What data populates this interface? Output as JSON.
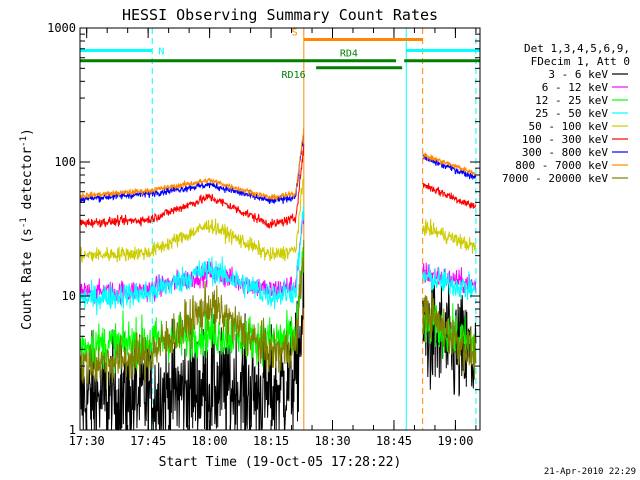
{
  "chart_data": {
    "type": "line",
    "title": "HESSI Observing Summary Count Rates",
    "xlabel": "Start Time (19-Oct-05 17:28:22)",
    "ylabel": "Count Rate (s",
    "ylabel_sup1": "-1",
    "ylabel_mid": " detector",
    "ylabel_sup2": "-1",
    "ylabel_end": ")",
    "y_scale": "log",
    "ylim": [
      1,
      1000
    ],
    "xlim": [
      "17:28:22",
      "19:06:00"
    ],
    "x_ticks": [
      "17:30",
      "17:45",
      "18:00",
      "18:15",
      "18:30",
      "18:45",
      "19:00"
    ],
    "y_ticks": [
      "1",
      "10",
      "100",
      "1000"
    ],
    "grid": false,
    "timestamp": "21-Apr-2010 22:29",
    "legend": {
      "placement": "right",
      "header": [
        "Det 1,3,4,5,6,9,",
        "FDecim 1, Att 0"
      ],
      "entries": [
        {
          "label": "3 - 6 keV",
          "color": "#000000"
        },
        {
          "label": "6 - 12 keV",
          "color": "#ff00ff"
        },
        {
          "label": "12 - 25 keV",
          "color": "#00ff00"
        },
        {
          "label": "25 - 50 keV",
          "color": "#00ffff"
        },
        {
          "label": "50 - 100 keV",
          "color": "#cccc00"
        },
        {
          "label": "100 - 300 keV",
          "color": "#ff0000"
        },
        {
          "label": "300 - 800 keV",
          "color": "#0000ff"
        },
        {
          "label": "800 - 7000 keV",
          "color": "#ff8800"
        },
        {
          "label": "7000 - 20000 keV",
          "color": "#808000"
        }
      ]
    },
    "flags": [
      {
        "label": "N",
        "color": "#00ffff",
        "segments": [
          [
            "17:28:22",
            "17:46:00"
          ],
          [
            "18:48:00",
            "19:06:00"
          ]
        ],
        "level": 680
      },
      {
        "label": "S",
        "color": "#ff8800",
        "segments": [
          [
            "18:23:00",
            "18:52:00"
          ]
        ],
        "level": 820
      },
      {
        "label": "RD4",
        "color": "#008000",
        "segments": [
          [
            "17:28:22",
            "18:45:30"
          ],
          [
            "18:47:30",
            "19:06:00"
          ]
        ],
        "level": 570
      },
      {
        "label": "RD16",
        "color": "#008000",
        "segments": [
          [
            "18:26:00",
            "18:47:00"
          ]
        ],
        "level": 505
      }
    ],
    "vertical_lines": [
      {
        "time": "17:28:22",
        "color": "#00ffff",
        "style": "solid"
      },
      {
        "time": "17:46:00",
        "color": "#00ffff",
        "style": "dashed"
      },
      {
        "time": "18:23:00",
        "color": "#ff8800",
        "style": "solid"
      },
      {
        "time": "18:48:00",
        "color": "#00ffff",
        "style": "solid"
      },
      {
        "time": "18:52:00",
        "color": "#ff8800",
        "style": "dashed"
      },
      {
        "time": "19:05:00",
        "color": "#00ffff",
        "style": "dashed"
      }
    ],
    "gap": [
      "18:23:00",
      "18:52:00"
    ],
    "series": [
      {
        "name": "3 - 6 keV",
        "color": "#000000",
        "noise": 0.32,
        "points": [
          [
            "17:28:22",
            1.7
          ],
          [
            "17:45:00",
            1.8
          ],
          [
            "18:00:00",
            2.1
          ],
          [
            "18:15:00",
            1.9
          ],
          [
            "18:21:00",
            2.5
          ],
          [
            "18:23:00",
            8
          ],
          [
            "18:52:00",
            5.5
          ],
          [
            "19:05:00",
            3.2
          ]
        ]
      },
      {
        "name": "6 - 12 keV",
        "color": "#ff00ff",
        "noise": 0.06,
        "points": [
          [
            "17:28:22",
            10.5
          ],
          [
            "17:45:00",
            11
          ],
          [
            "18:00:00",
            15
          ],
          [
            "18:15:00",
            11
          ],
          [
            "18:21:00",
            12
          ],
          [
            "18:23:00",
            40
          ],
          [
            "18:52:00",
            15
          ],
          [
            "19:05:00",
            12
          ]
        ]
      },
      {
        "name": "12 - 25 keV",
        "color": "#00ff00",
        "noise": 0.12,
        "points": [
          [
            "17:28:22",
            4.2
          ],
          [
            "17:45:00",
            4.6
          ],
          [
            "18:00:00",
            5.3
          ],
          [
            "18:15:00",
            4.7
          ],
          [
            "18:21:00",
            5
          ],
          [
            "18:23:00",
            20
          ],
          [
            "18:52:00",
            6.5
          ],
          [
            "19:05:00",
            4.3
          ]
        ]
      },
      {
        "name": "25 - 50 keV",
        "color": "#00ffff",
        "noise": 0.07,
        "points": [
          [
            "17:28:22",
            9.5
          ],
          [
            "17:45:00",
            10.5
          ],
          [
            "18:00:00",
            16
          ],
          [
            "18:15:00",
            10
          ],
          [
            "18:21:00",
            11
          ],
          [
            "18:23:00",
            45
          ],
          [
            "18:52:00",
            14
          ],
          [
            "19:05:00",
            11
          ]
        ]
      },
      {
        "name": "50 - 100 keV",
        "color": "#cccc00",
        "noise": 0.04,
        "points": [
          [
            "17:28:22",
            20
          ],
          [
            "17:45:00",
            21
          ],
          [
            "18:00:00",
            34
          ],
          [
            "18:15:00",
            20
          ],
          [
            "18:21:00",
            22
          ],
          [
            "18:23:00",
            80
          ],
          [
            "18:52:00",
            33
          ],
          [
            "19:05:00",
            23
          ]
        ]
      },
      {
        "name": "100 - 300 keV",
        "color": "#ff0000",
        "noise": 0.025,
        "points": [
          [
            "17:28:22",
            35
          ],
          [
            "17:45:00",
            37
          ],
          [
            "18:00:00",
            55
          ],
          [
            "18:15:00",
            34
          ],
          [
            "18:21:00",
            38
          ],
          [
            "18:23:00",
            130
          ],
          [
            "18:52:00",
            68
          ],
          [
            "19:05:00",
            46
          ]
        ]
      },
      {
        "name": "300 - 800 keV",
        "color": "#0000ff",
        "noise": 0.02,
        "points": [
          [
            "17:28:22",
            53
          ],
          [
            "17:45:00",
            58
          ],
          [
            "18:00:00",
            68
          ],
          [
            "18:15:00",
            51
          ],
          [
            "18:21:00",
            55
          ],
          [
            "18:23:00",
            170
          ],
          [
            "18:52:00",
            108
          ],
          [
            "19:05:00",
            77
          ]
        ]
      },
      {
        "name": "800 - 7000 keV",
        "color": "#ff8800",
        "noise": 0.015,
        "points": [
          [
            "17:28:22",
            56
          ],
          [
            "17:45:00",
            61
          ],
          [
            "18:00:00",
            73
          ],
          [
            "18:15:00",
            54
          ],
          [
            "18:21:00",
            58
          ],
          [
            "18:23:00",
            180
          ],
          [
            "18:52:00",
            113
          ],
          [
            "19:05:00",
            82
          ]
        ]
      },
      {
        "name": "7000 - 20000 keV",
        "color": "#808000",
        "noise": 0.12,
        "points": [
          [
            "17:28:22",
            3.0
          ],
          [
            "17:45:00",
            3.6
          ],
          [
            "18:00:00",
            8.5
          ],
          [
            "18:15:00",
            3.7
          ],
          [
            "18:21:00",
            4.2
          ],
          [
            "18:23:00",
            22
          ],
          [
            "18:52:00",
            8
          ],
          [
            "19:05:00",
            3.5
          ]
        ]
      }
    ]
  }
}
